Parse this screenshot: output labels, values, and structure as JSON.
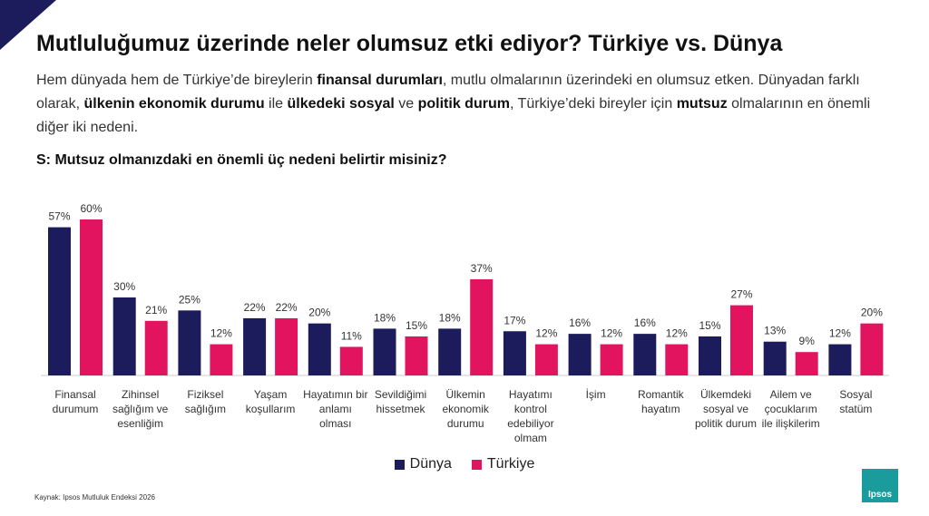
{
  "chart_data": {
    "type": "bar",
    "title": "Mutluluğumuz üzerinde neler olumsuz etki ediyor? Türkiye vs. Dünya",
    "subtitle": [
      {
        "text": "Hem dünyada hem de Türkiye’de bireylerin ",
        "bold": false
      },
      {
        "text": "finansal durumları",
        "bold": true
      },
      {
        "text": ", mutlu olmalarının üzerindeki en olumsuz etken. Dünyadan farklı olarak, ",
        "bold": false
      },
      {
        "text": "ülkenin ekonomik durumu",
        "bold": true
      },
      {
        "text": " ile ",
        "bold": false
      },
      {
        "text": "ülkedeki sosyal",
        "bold": true
      },
      {
        "text": " ve ",
        "bold": false
      },
      {
        "text": "politik durum",
        "bold": true
      },
      {
        "text": ", Türkiye’deki bireyler için ",
        "bold": false
      },
      {
        "text": "mutsuz",
        "bold": true
      },
      {
        "text": " olmalarının en önemli diğer iki nedeni.",
        "bold": false
      }
    ],
    "question": "S: Mutsuz olmanızdaki en önemli üç nedeni belirtir misiniz?",
    "categories": [
      "Finansal durumum",
      "Zihinsel sağlığım ve esenliğim",
      "Fiziksel sağlığım",
      "Yaşam koşullarım",
      "Hayatımın bir anlamı olması",
      "Sevildiğimi hissetmek",
      "Ülkemin ekonomik durumu",
      "Hayatımı kontrol edebiliyor olmam",
      "İşim",
      "Romantik hayatım",
      "Ülkemdeki sosyal ve politik durum",
      "Ailem ve çocuklarım ile ilişkilerim",
      "Sosyal statüm"
    ],
    "series": [
      {
        "name": "Dünya",
        "color": "#1c1b5c",
        "values": [
          57,
          30,
          25,
          22,
          20,
          18,
          18,
          17,
          16,
          16,
          15,
          13,
          12
        ],
        "value_labels": [
          "57%",
          "30%",
          "25%",
          "22%",
          "20%",
          "18%",
          "18%",
          "17%",
          "16%",
          "16%",
          "15%",
          "13%",
          "12%"
        ]
      },
      {
        "name": "Türkiye",
        "color": "#e3145f",
        "values": [
          60,
          21,
          12,
          22,
          11,
          15,
          37,
          12,
          12,
          12,
          27,
          9,
          20
        ],
        "value_labels": [
          "60%",
          "21%",
          "12%",
          "22%",
          "11%",
          "15%",
          "37%",
          "12%",
          "12%",
          "12%",
          "27%",
          "9%",
          "20%"
        ]
      }
    ],
    "legend": "bottom"
  },
  "source": "Kaynak: Ipsos Mutluluk Endeksi 2026",
  "logo": "Ipsos"
}
